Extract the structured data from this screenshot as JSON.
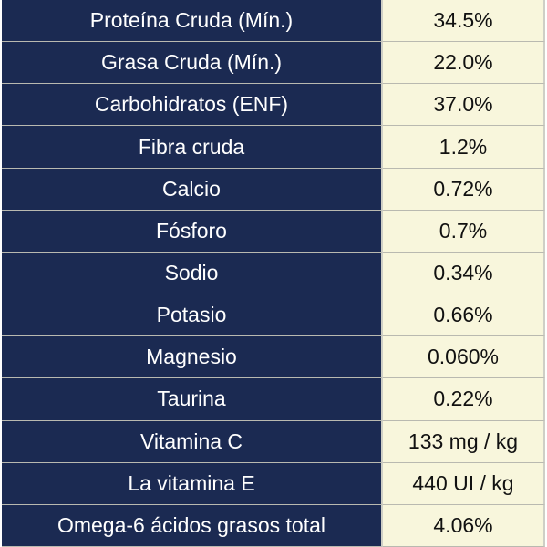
{
  "nutrition_table": {
    "rows": [
      {
        "label": "Proteína Cruda (Mín.)",
        "value": "34.5%"
      },
      {
        "label": "Grasa Cruda (Mín.)",
        "value": "22.0%"
      },
      {
        "label": "Carbohidratos (ENF)",
        "value": "37.0%"
      },
      {
        "label": "Fibra cruda",
        "value": "1.2%"
      },
      {
        "label": "Calcio",
        "value": "0.72%"
      },
      {
        "label": "Fósforo",
        "value": "0.7%"
      },
      {
        "label": "Sodio",
        "value": "0.34%"
      },
      {
        "label": "Potasio",
        "value": "0.66%"
      },
      {
        "label": "Magnesio",
        "value": "0.060%"
      },
      {
        "label": "Taurina",
        "value": "0.22%"
      },
      {
        "label": "Vitamina C",
        "value": "133 mg / kg"
      },
      {
        "label": "La vitamina E",
        "value": "440 UI / kg"
      },
      {
        "label": "Omega-6 ácidos grasos total",
        "value": "4.06%"
      }
    ]
  },
  "colors": {
    "label_background": "#1b2a52",
    "value_background": "#f8f6dc"
  }
}
